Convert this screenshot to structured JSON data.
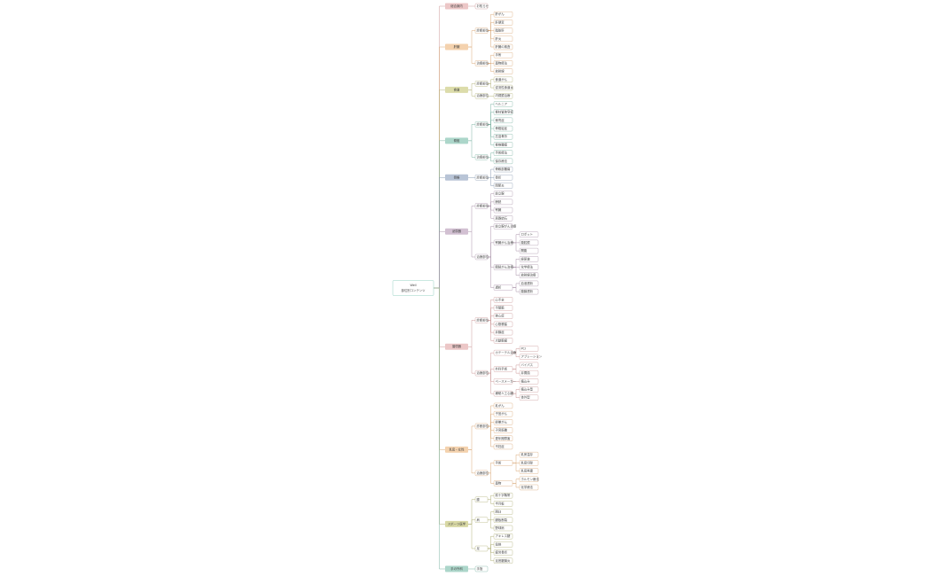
{
  "root": {
    "label": "Well\n部位別コンテンツ",
    "children": [
      {
        "label": "総合案内",
        "children": [
          {
            "label": "お知らせ"
          }
        ]
      },
      {
        "label": "肝臓",
        "children": [
          {
            "label": "診断部位",
            "children": [
              {
                "label": "肝がん"
              },
              {
                "label": "肝硬変"
              },
              {
                "label": "脂肪肝"
              },
              {
                "label": "肝炎"
              },
              {
                "label": "肝臓の検査"
              }
            ]
          },
          {
            "label": "治療部位",
            "children": [
              {
                "label": "手術"
              },
              {
                "label": "薬物療法"
              },
              {
                "label": "放射線"
              }
            ]
          }
        ]
      },
      {
        "label": "食道",
        "children": [
          {
            "label": "診断部位",
            "children": [
              {
                "label": "食道がん"
              },
              {
                "label": "逆流性食道炎"
              }
            ]
          },
          {
            "label": "治療部位",
            "children": [
              {
                "label": "内視鏡治療"
              }
            ]
          }
        ]
      },
      {
        "label": "脊椎",
        "children": [
          {
            "label": "診断部位",
            "children": [
              {
                "label": "ヘルニア"
              },
              {
                "label": "脊柱管狭窄症"
              },
              {
                "label": "側弯症"
              },
              {
                "label": "骨粗鬆症"
              },
              {
                "label": "圧迫骨折"
              },
              {
                "label": "脊椎腫瘍"
              }
            ]
          },
          {
            "label": "治療部位",
            "children": [
              {
                "label": "手術療法"
              },
              {
                "label": "保存療法"
              }
            ]
          }
        ]
      },
      {
        "label": "骨格",
        "children": [
          {
            "label": "診断部位",
            "children": [
              {
                "label": "骨軟部腫瘍"
              },
              {
                "label": "骨折"
              },
              {
                "label": "関節炎"
              }
            ]
          }
        ]
      },
      {
        "label": "泌尿器",
        "children": [
          {
            "label": "診断部位",
            "children": [
              {
                "label": "前立腺"
              },
              {
                "label": "膀胱"
              },
              {
                "label": "腎臓"
              },
              {
                "label": "尿路結石"
              }
            ]
          },
          {
            "label": "治療部位",
            "children": [
              {
                "label": "前立腺がん治療"
              },
              {
                "label": "腎臓がん治療",
                "children": [
                  {
                    "label": "ロボット"
                  },
                  {
                    "label": "腹腔鏡"
                  },
                  {
                    "label": "開腹"
                  }
                ]
              },
              {
                "label": "膀胱がん治療",
                "children": [
                  {
                    "label": "経尿道"
                  },
                  {
                    "label": "化学療法"
                  },
                  {
                    "label": "放射線治療"
                  }
                ]
              },
              {
                "label": "透析",
                "children": [
                  {
                    "label": "血液透析"
                  },
                  {
                    "label": "腹膜透析"
                  }
                ]
              }
            ]
          }
        ]
      },
      {
        "label": "循環器",
        "children": [
          {
            "label": "診断部位",
            "children": [
              {
                "label": "心不全"
              },
              {
                "label": "不整脈"
              },
              {
                "label": "狭心症"
              },
              {
                "label": "心筋梗塞"
              },
              {
                "label": "弁膜症"
              },
              {
                "label": "大動脈瘤"
              }
            ]
          },
          {
            "label": "治療部位",
            "children": [
              {
                "label": "カテーテル治療",
                "children": [
                  {
                    "label": "PCI"
                  },
                  {
                    "label": "アブレーション"
                  }
                ]
              },
              {
                "label": "外科手術",
                "children": [
                  {
                    "label": "バイパス"
                  },
                  {
                    "label": "弁置換"
                  }
                ]
              },
              {
                "label": "ペースメーカー",
                "children": [
                  {
                    "label": "植込み"
                  }
                ]
              },
              {
                "label": "補助人工心臓",
                "children": [
                  {
                    "label": "植込み型"
                  },
                  {
                    "label": "体外型"
                  }
                ]
              }
            ]
          }
        ]
      },
      {
        "label": "乳房・女性",
        "children": [
          {
            "label": "診断部位",
            "children": [
              {
                "label": "乳がん"
              },
              {
                "label": "子宮がん"
              },
              {
                "label": "卵巣がん"
              },
              {
                "label": "子宮筋腫"
              },
              {
                "label": "更年期障害"
              },
              {
                "label": "不妊症"
              }
            ]
          },
          {
            "label": "治療部位",
            "children": [
              {
                "label": "手術",
                "children": [
                  {
                    "label": "乳房温存"
                  },
                  {
                    "label": "乳房切除"
                  },
                  {
                    "label": "乳房再建"
                  }
                ]
              },
              {
                "label": "薬物",
                "children": [
                  {
                    "label": "ホルモン療法"
                  },
                  {
                    "label": "化学療法"
                  }
                ]
              }
            ]
          }
        ]
      },
      {
        "label": "スポーツ医学",
        "children": [
          {
            "label": "膝",
            "children": [
              {
                "label": "前十字靱帯"
              },
              {
                "label": "半月板"
              }
            ]
          },
          {
            "label": "肩",
            "children": [
              {
                "label": "脱臼"
              },
              {
                "label": "腱板断裂"
              },
              {
                "label": "野球肩"
              }
            ]
          },
          {
            "label": "足",
            "children": [
              {
                "label": "アキレス腱"
              },
              {
                "label": "捻挫"
              },
              {
                "label": "疲労骨折"
              },
              {
                "label": "足底腱膜炎"
              }
            ]
          }
        ]
      },
      {
        "label": "手の外科",
        "children": [
          {
            "label": "手指"
          }
        ]
      }
    ]
  }
}
